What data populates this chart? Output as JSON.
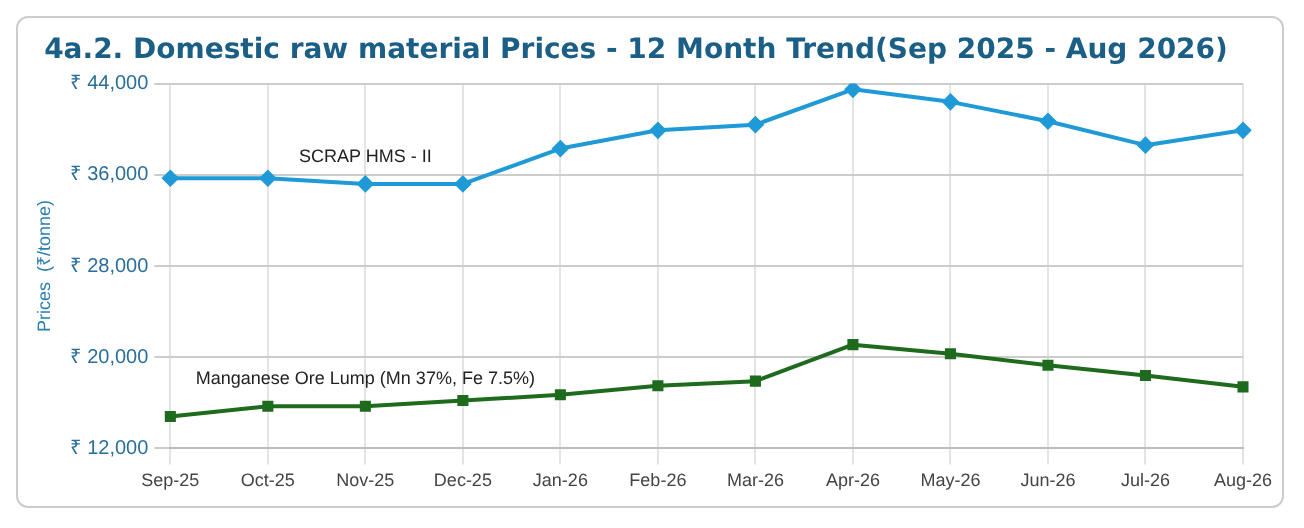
{
  "chart_data": {
    "type": "line",
    "title": "4a.2. Domestic raw material Prices - 12 Month Trend(Sep 2025 - Aug 2026)",
    "ylabel": "Prices  (₹/tonne)",
    "categories": [
      "Sep-25",
      "Oct-25",
      "Nov-25",
      "Dec-25",
      "Jan-26",
      "Feb-26",
      "Mar-26",
      "Apr-26",
      "May-26",
      "Jun-26",
      "Jul-26",
      "Aug-26"
    ],
    "series": [
      {
        "name": "SCRAP HMS - II",
        "color": "#1f9ad6",
        "marker": "diamond",
        "values": [
          35700,
          35700,
          35200,
          35200,
          38300,
          39900,
          40400,
          43500,
          42400,
          40700,
          38600,
          39900
        ]
      },
      {
        "name": "Manganese Ore Lump (Mn 37%, Fe 7.5%)",
        "color": "#1e6b1e",
        "marker": "square",
        "values": [
          14800,
          15700,
          15700,
          16200,
          16700,
          17500,
          17900,
          21100,
          20300,
          19300,
          18400,
          17400
        ]
      }
    ],
    "ylim": [
      12000,
      44000
    ],
    "yticks": [
      {
        "value": 12000,
        "label": "₹ 12,000"
      },
      {
        "value": 20000,
        "label": "₹ 20,000"
      },
      {
        "value": 28000,
        "label": "₹ 28,000"
      },
      {
        "value": 36000,
        "label": "₹ 36,000"
      },
      {
        "value": 44000,
        "label": "₹ 44,000"
      }
    ],
    "grid": true,
    "legend": false,
    "line_style": "solid"
  }
}
